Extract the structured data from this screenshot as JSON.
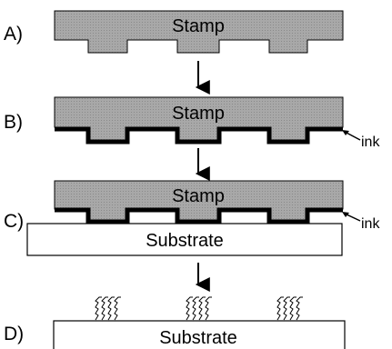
{
  "steps": [
    {
      "label": "A)",
      "stamp_label": "Stamp"
    },
    {
      "label": "B)",
      "stamp_label": "Stamp",
      "ink_label": "ink"
    },
    {
      "label": "C)",
      "stamp_label": "Stamp",
      "ink_label": "ink",
      "substrate_label": "Substrate"
    },
    {
      "label": "D)",
      "substrate_label": "Substrate",
      "monolayer_patches": 3
    }
  ],
  "colors": {
    "stamp_fill": "#a9a9a9",
    "ink": "#000000",
    "substrate_fill": "#ffffff",
    "outline": "#000000"
  }
}
